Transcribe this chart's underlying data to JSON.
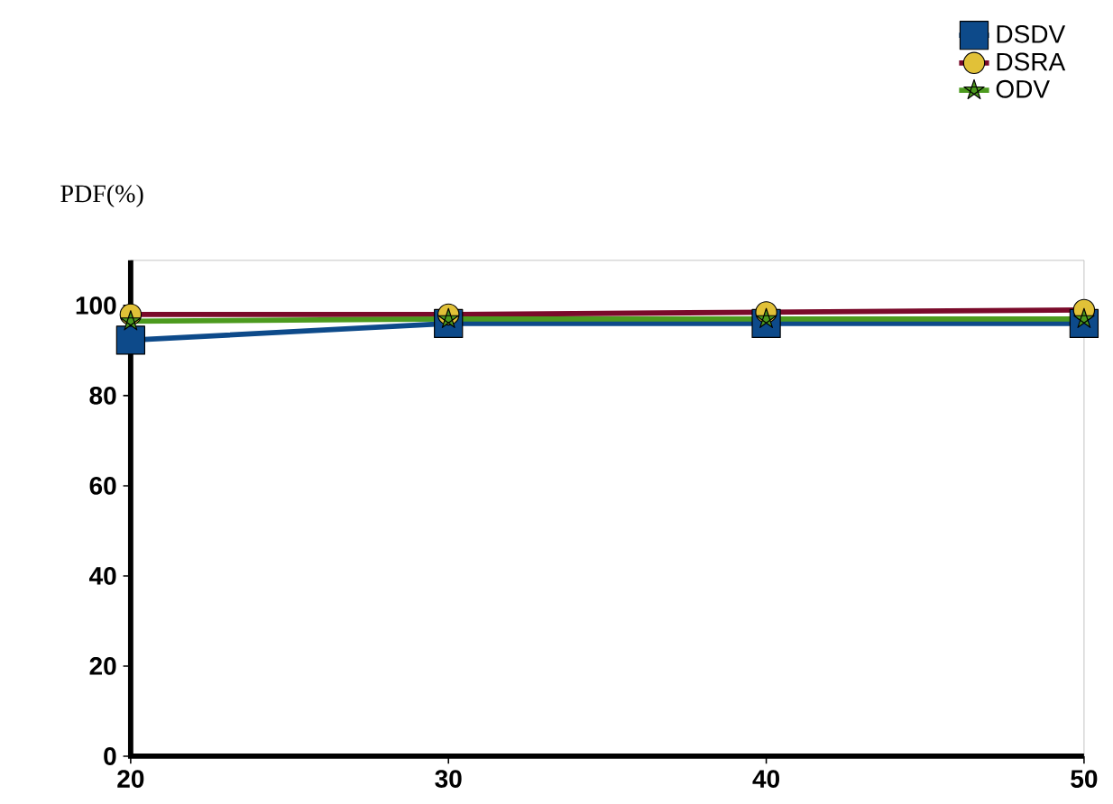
{
  "chart_data": {
    "type": "line",
    "ylabel": "PDF(%)",
    "x": [
      20,
      30,
      40,
      50
    ],
    "series": [
      {
        "name": "DSDV",
        "color": "#0d4a8a",
        "marker": "square",
        "values": [
          92.3,
          96,
          96,
          96
        ]
      },
      {
        "name": "DSRA",
        "color": "#7a0a2a",
        "marker": "circle",
        "values": [
          98,
          98,
          98.5,
          99
        ]
      },
      {
        "name": "ODV",
        "color": "#4c9a1e",
        "marker": "star",
        "values": [
          96.5,
          97,
          97,
          97
        ]
      }
    ],
    "xlim": [
      20,
      50
    ],
    "ylim": [
      0,
      110
    ],
    "xticks": [
      20,
      30,
      40,
      50
    ],
    "yticks": [
      0,
      20,
      40,
      60,
      80,
      100
    ],
    "legend": "top right",
    "line_style": "solid"
  }
}
